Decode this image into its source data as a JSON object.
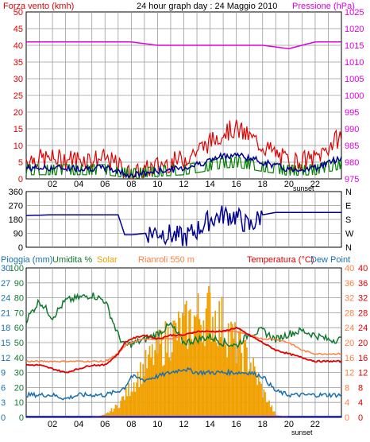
{
  "header": {
    "wind_label": "Forza vento (kmh)",
    "title": "24 hour graph day : 24 Maggio 2010",
    "pressure_label": "Pressione (hPa)"
  },
  "bottom_header": {
    "rain_label": "Pioggia (mm)",
    "humidity_label": "Umidita %",
    "solar_label": "Solar",
    "rifugio_label": "Rianroli 550 m",
    "temp_label": "Temperatura (°C)",
    "dew_label": "Dew Point"
  },
  "x_ticks": [
    "02",
    "04",
    "06",
    "08",
    "10",
    "12",
    "14",
    "16",
    "18",
    "20",
    "22"
  ],
  "sunset_label": "sunset",
  "colors": {
    "wind_gust": "#e00000",
    "wind_avg": "#000090",
    "wind_green": "#008000",
    "pressure": "#e000e0",
    "direction": "#000090",
    "humidity": "#107a30",
    "temperature": "#e00000",
    "rif_temp": "#ff8040",
    "dewpoint": "#1a70b0",
    "solar": "#f0a000",
    "rain": "#0000ff"
  },
  "chart_data": [
    {
      "type": "line",
      "title": "24 hour graph day : 24 Maggio 2010",
      "y_left_label": "Forza vento (kmh)",
      "y_right_label": "Pressione (hPa)",
      "x_hours": [
        0,
        2,
        4,
        6,
        7,
        8,
        10,
        12,
        14,
        15,
        16,
        18,
        20,
        22,
        24
      ],
      "ylim_left": [
        0,
        50
      ],
      "ylim_right": [
        975,
        1025
      ],
      "y_left_ticks": [
        0,
        5,
        10,
        15,
        20,
        25,
        30,
        35,
        40,
        45,
        50
      ],
      "y_right_ticks": [
        975,
        980,
        985,
        990,
        995,
        1000,
        1005,
        1010,
        1015,
        1020,
        1025
      ],
      "series": [
        {
          "name": "Forza vento (kmh)",
          "values": [
            5,
            5,
            5,
            5,
            3,
            0,
            3,
            5,
            10,
            13,
            14,
            9,
            4,
            5,
            12
          ]
        },
        {
          "name": "Pressione (hPa)",
          "values": [
            1016,
            1016,
            1016,
            1016,
            1016,
            1016,
            1015,
            1015,
            1015,
            1015,
            1015,
            1015,
            1014,
            1016,
            1016
          ]
        }
      ]
    },
    {
      "type": "line",
      "x_hours": [
        0,
        2,
        4,
        6,
        7,
        7.5,
        8,
        9,
        10,
        12,
        13,
        14,
        15,
        16,
        17,
        18,
        19,
        20,
        22,
        24
      ],
      "ylim": [
        0,
        360
      ],
      "y_ticks": [
        0,
        90,
        180,
        270,
        360
      ],
      "y_right_ticks": [
        "N",
        "W",
        "S",
        "E",
        "N"
      ],
      "series": [
        {
          "name": "direction",
          "values": [
            205,
            210,
            210,
            210,
            210,
            80,
            80,
            90,
            100,
            60,
            110,
            180,
            210,
            200,
            130,
            210,
            225,
            225,
            225,
            225
          ]
        }
      ]
    },
    {
      "type": "line",
      "x_hours": [
        0,
        1,
        2,
        3,
        4,
        5,
        6,
        7,
        7.5,
        8,
        9,
        10,
        11,
        12,
        13,
        14,
        15,
        16,
        17,
        18,
        19,
        20,
        21,
        22,
        23,
        24
      ],
      "ylim_rain": [
        0,
        30
      ],
      "ylim_humidity": [
        0,
        100
      ],
      "ylim_solar": [
        0,
        1000
      ],
      "ylim_temp": [
        0,
        40
      ],
      "y_rain_ticks": [
        0,
        3,
        6,
        9,
        12,
        15,
        18,
        21,
        24,
        27,
        30
      ],
      "y_humidity_ticks": [
        0,
        10,
        20,
        30,
        40,
        50,
        60,
        70,
        80,
        90,
        100
      ],
      "y_temp_ticks": [
        0,
        4,
        8,
        12,
        16,
        20,
        24,
        28,
        32,
        36,
        40
      ],
      "series": [
        {
          "name": "Umidita %",
          "values": [
            65,
            78,
            67,
            78,
            80,
            82,
            78,
            55,
            48,
            49,
            52,
            56,
            62,
            50,
            52,
            54,
            50,
            48,
            56,
            58,
            52,
            56,
            58,
            55,
            52,
            52
          ]
        },
        {
          "name": "Temperatura (°C)",
          "values": [
            14,
            14,
            13,
            12,
            13,
            14,
            14,
            17,
            20,
            21,
            22,
            21,
            22,
            22,
            23,
            23,
            23,
            24,
            22,
            20,
            18,
            17,
            16,
            15,
            15,
            15
          ]
        },
        {
          "name": "Rianroli 550 m",
          "values": [
            15,
            15,
            15,
            15,
            15,
            15,
            15,
            17,
            19,
            20,
            21,
            21,
            21,
            22,
            23,
            23,
            23,
            23,
            22,
            21,
            21,
            20,
            18,
            17,
            17,
            17
          ]
        },
        {
          "name": "Dew Point",
          "values": [
            6,
            6,
            6,
            5,
            6,
            6,
            6,
            7,
            8,
            11,
            10,
            11,
            12,
            13,
            12,
            12,
            12,
            12,
            12,
            11,
            7,
            6,
            6,
            6,
            6,
            6
          ]
        },
        {
          "name": "Solar",
          "values": [
            0,
            0,
            0,
            0,
            0,
            0,
            20,
            100,
            180,
            260,
            420,
            560,
            680,
            740,
            830,
            880,
            780,
            600,
            480,
            220,
            20,
            0,
            0,
            0,
            0,
            0
          ]
        },
        {
          "name": "Pioggia (mm)",
          "values": [
            0,
            0,
            0,
            0,
            0,
            0,
            0,
            0,
            0,
            0,
            0,
            0,
            0,
            0,
            0,
            0,
            0,
            0,
            0,
            0,
            0,
            0,
            0,
            0,
            0,
            0
          ]
        }
      ]
    }
  ]
}
